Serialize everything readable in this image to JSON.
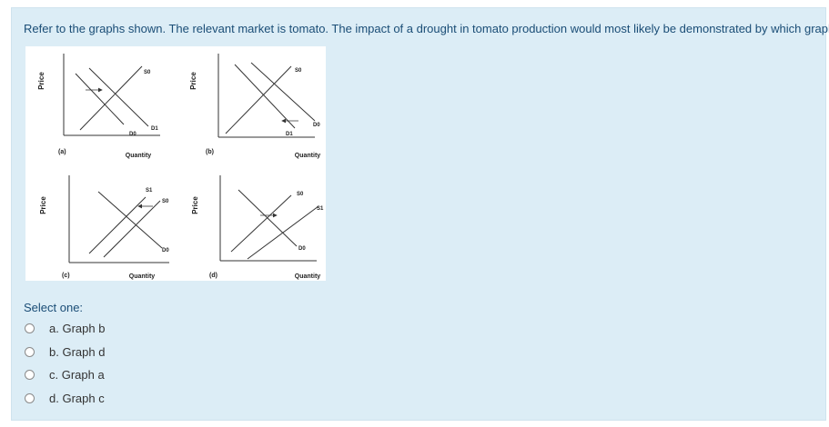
{
  "question": {
    "text": "Refer to the graphs shown. The relevant market is tomato. The impact of a drought in tomato production would most likely be demonstrated by which graph?"
  },
  "figure": {
    "axis_y": "Price",
    "axis_x": "Quantity",
    "graphs": [
      {
        "letter": "(a)",
        "labels": [
          "S0",
          "D0",
          "D1"
        ]
      },
      {
        "letter": "(b)",
        "labels": [
          "S0",
          "D0",
          "D1"
        ]
      },
      {
        "letter": "(c)",
        "labels": [
          "S1",
          "S0",
          "D0"
        ]
      },
      {
        "letter": "(d)",
        "labels": [
          "S0",
          "S1",
          "D0"
        ]
      }
    ],
    "line_color": "#333333"
  },
  "answer": {
    "prompt": "Select one:",
    "options": [
      {
        "label": "a. Graph b"
      },
      {
        "label": "b. Graph d"
      },
      {
        "label": "c. Graph a"
      },
      {
        "label": "d. Graph c"
      }
    ]
  },
  "colors": {
    "background": "#dcedf6",
    "question_text": "#1a4d76"
  }
}
